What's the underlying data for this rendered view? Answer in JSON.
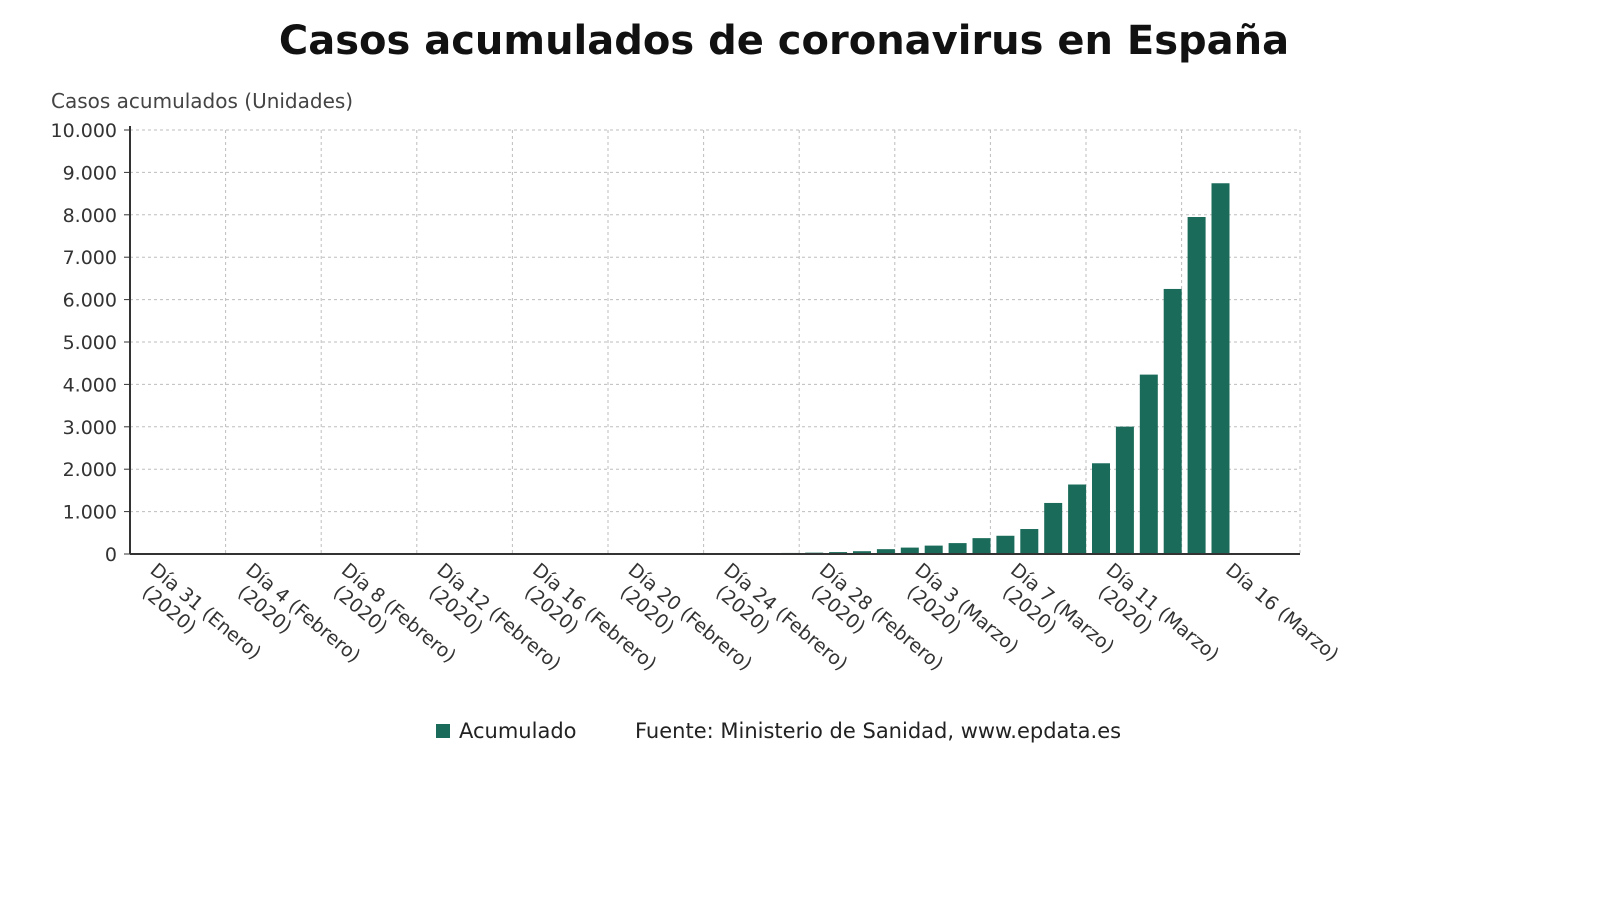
{
  "chart_data": {
    "type": "bar",
    "title": "Casos acumulados de coronavirus en España",
    "ylabel": "Casos acumulados (Unidades)",
    "xlabel": "",
    "ylim": [
      0,
      10000
    ],
    "y_ticks": [
      "0",
      "1.000",
      "2.000",
      "3.000",
      "4.000",
      "5.000",
      "6.000",
      "7.000",
      "8.000",
      "9.000",
      "10.000"
    ],
    "x_tick_labels": [
      {
        "index": 0,
        "lines": [
          "Día 31 (Enero)",
          "(2020)"
        ]
      },
      {
        "index": 4,
        "lines": [
          "Día 4 (Febrero)",
          "(2020)"
        ]
      },
      {
        "index": 8,
        "lines": [
          "Día 8 (Febrero)",
          "(2020)"
        ]
      },
      {
        "index": 12,
        "lines": [
          "Día 12 (Febrero)",
          "(2020)"
        ]
      },
      {
        "index": 16,
        "lines": [
          "Día 16 (Febrero)",
          "(2020)"
        ]
      },
      {
        "index": 20,
        "lines": [
          "Día 20 (Febrero)",
          "(2020)"
        ]
      },
      {
        "index": 24,
        "lines": [
          "Día 24 (Febrero)",
          "(2020)"
        ]
      },
      {
        "index": 28,
        "lines": [
          "Día 28 (Febrero)",
          "(2020)"
        ]
      },
      {
        "index": 32,
        "lines": [
          "Día 3 (Marzo)",
          "(2020)"
        ]
      },
      {
        "index": 36,
        "lines": [
          "Día 7 (Marzo)",
          "(2020)"
        ]
      },
      {
        "index": 40,
        "lines": [
          "Día 11 (Marzo)",
          "(2020)"
        ]
      },
      {
        "index": 45,
        "lines": [
          "Día 16 (Marzo)"
        ]
      }
    ],
    "series": [
      {
        "name": "Acumulado",
        "color": "#1a6b5a",
        "values": [
          1,
          1,
          1,
          1,
          1,
          1,
          1,
          1,
          1,
          2,
          2,
          2,
          2,
          2,
          2,
          2,
          2,
          2,
          2,
          2,
          2,
          2,
          2,
          2,
          2,
          7,
          13,
          25,
          32,
          45,
          66,
          114,
          151,
          198,
          257,
          374,
          430,
          589,
          1204,
          1639,
          2140,
          3004,
          4231,
          6251,
          7948,
          8744
        ]
      }
    ],
    "grid": true,
    "legend_position": "bottom"
  },
  "legend": {
    "label": "Acumulado",
    "color": "#1a6b5a"
  },
  "source": "Fuente: Ministerio de Sanidad, www.epdata.es"
}
